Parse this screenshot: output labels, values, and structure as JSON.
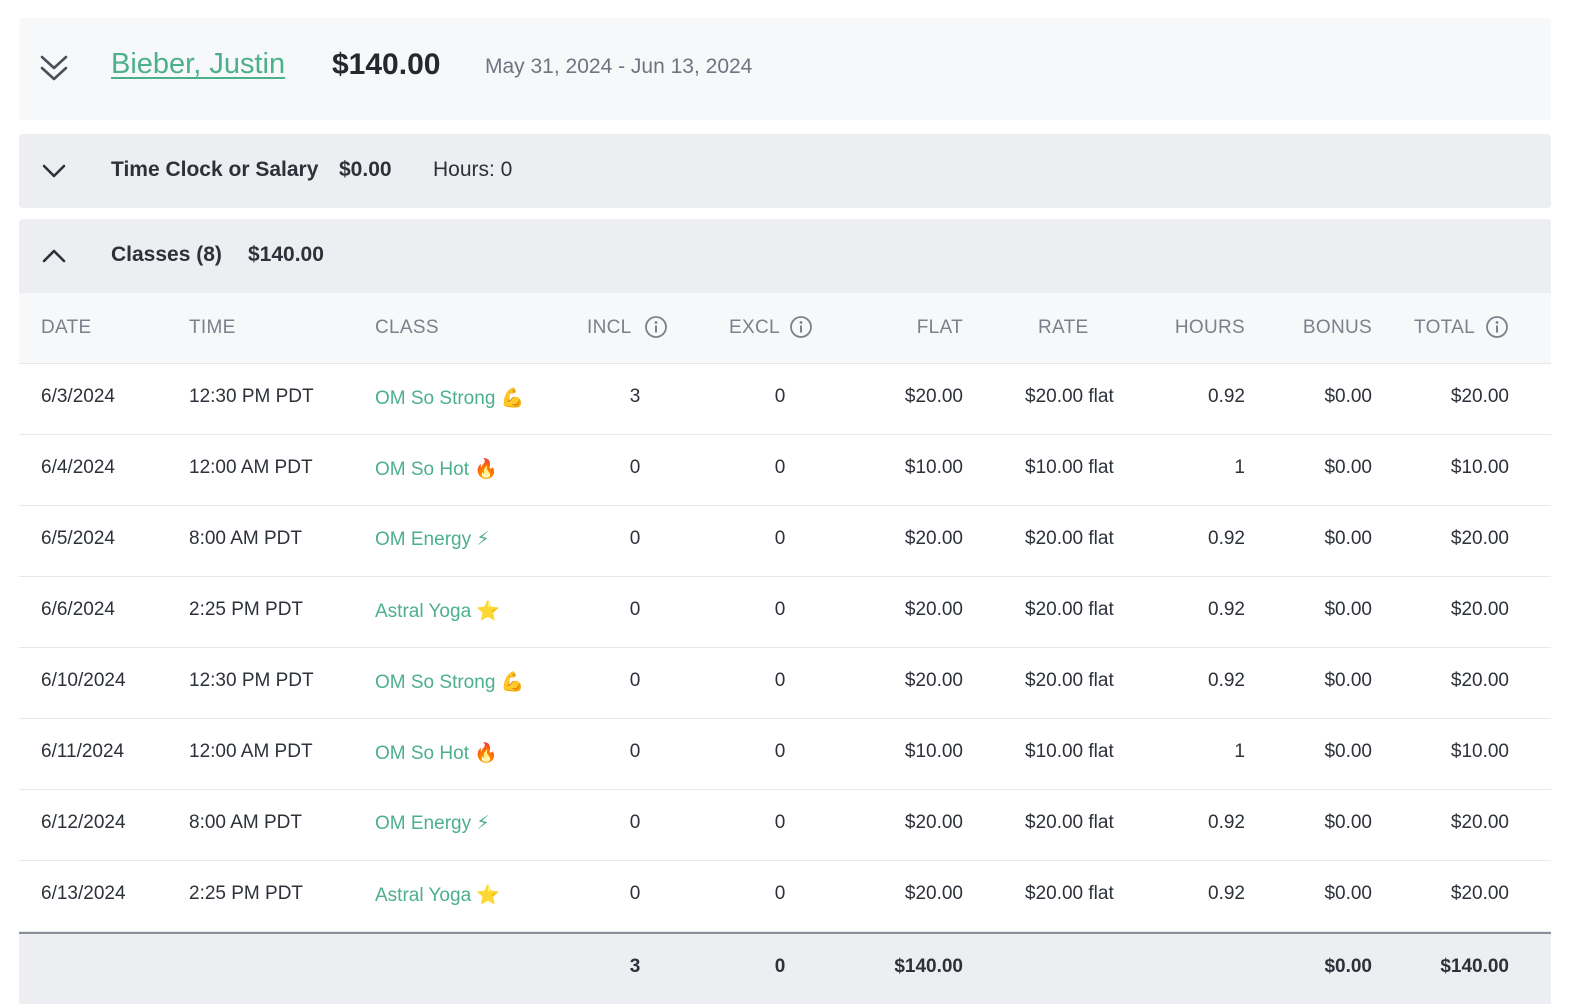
{
  "employee": {
    "name": "Bieber, Justin",
    "total": "$140.00",
    "date_range": "May 31, 2024 - Jun 13, 2024",
    "icon": "double-chevron-down-icon"
  },
  "time_clock": {
    "label": "Time Clock or Salary",
    "amount": "$0.00",
    "hours": "Hours: 0",
    "icon": "chevron-down-icon"
  },
  "classes": {
    "label": "Classes (8)",
    "amount": "$140.00",
    "icon": "chevron-up-icon",
    "columns": {
      "date": "DATE",
      "time": "TIME",
      "class": "CLASS",
      "incl": "INCL",
      "excl": "EXCL",
      "flat": "FLAT",
      "rate": "RATE",
      "hours": "HOURS",
      "bonus": "BONUS",
      "total": "TOTAL"
    },
    "rows": [
      {
        "date": "6/3/2024",
        "time": "12:30 PM PDT",
        "class": "OM So Strong 💪",
        "incl": "3",
        "excl": "0",
        "flat": "$20.00",
        "rate": "$20.00 flat",
        "hours": "0.92",
        "bonus": "$0.00",
        "total": "$20.00"
      },
      {
        "date": "6/4/2024",
        "time": "12:00 AM PDT",
        "class": "OM So Hot 🔥",
        "incl": "0",
        "excl": "0",
        "flat": "$10.00",
        "rate": "$10.00 flat",
        "hours": "1",
        "bonus": "$0.00",
        "total": "$10.00"
      },
      {
        "date": "6/5/2024",
        "time": "8:00 AM PDT",
        "class": "OM Energy ⚡",
        "incl": "0",
        "excl": "0",
        "flat": "$20.00",
        "rate": "$20.00 flat",
        "hours": "0.92",
        "bonus": "$0.00",
        "total": "$20.00"
      },
      {
        "date": "6/6/2024",
        "time": "2:25 PM PDT",
        "class": "Astral Yoga ⭐",
        "incl": "0",
        "excl": "0",
        "flat": "$20.00",
        "rate": "$20.00 flat",
        "hours": "0.92",
        "bonus": "$0.00",
        "total": "$20.00"
      },
      {
        "date": "6/10/2024",
        "time": "12:30 PM PDT",
        "class": "OM So Strong 💪",
        "incl": "0",
        "excl": "0",
        "flat": "$20.00",
        "rate": "$20.00 flat",
        "hours": "0.92",
        "bonus": "$0.00",
        "total": "$20.00"
      },
      {
        "date": "6/11/2024",
        "time": "12:00 AM PDT",
        "class": "OM So Hot 🔥",
        "incl": "0",
        "excl": "0",
        "flat": "$10.00",
        "rate": "$10.00 flat",
        "hours": "1",
        "bonus": "$0.00",
        "total": "$10.00"
      },
      {
        "date": "6/12/2024",
        "time": "8:00 AM PDT",
        "class": "OM Energy ⚡",
        "incl": "0",
        "excl": "0",
        "flat": "$20.00",
        "rate": "$20.00 flat",
        "hours": "0.92",
        "bonus": "$0.00",
        "total": "$20.00"
      },
      {
        "date": "6/13/2024",
        "time": "2:25 PM PDT",
        "class": "Astral Yoga ⭐",
        "incl": "0",
        "excl": "0",
        "flat": "$20.00",
        "rate": "$20.00 flat",
        "hours": "0.92",
        "bonus": "$0.00",
        "total": "$20.00"
      }
    ],
    "totals": {
      "incl": "3",
      "excl": "0",
      "flat": "$140.00",
      "bonus": "$0.00",
      "total": "$140.00"
    }
  },
  "colors": {
    "accent": "#4caf8e",
    "header_bg": "#f7f8fa",
    "section_bg": "#eceef2"
  }
}
